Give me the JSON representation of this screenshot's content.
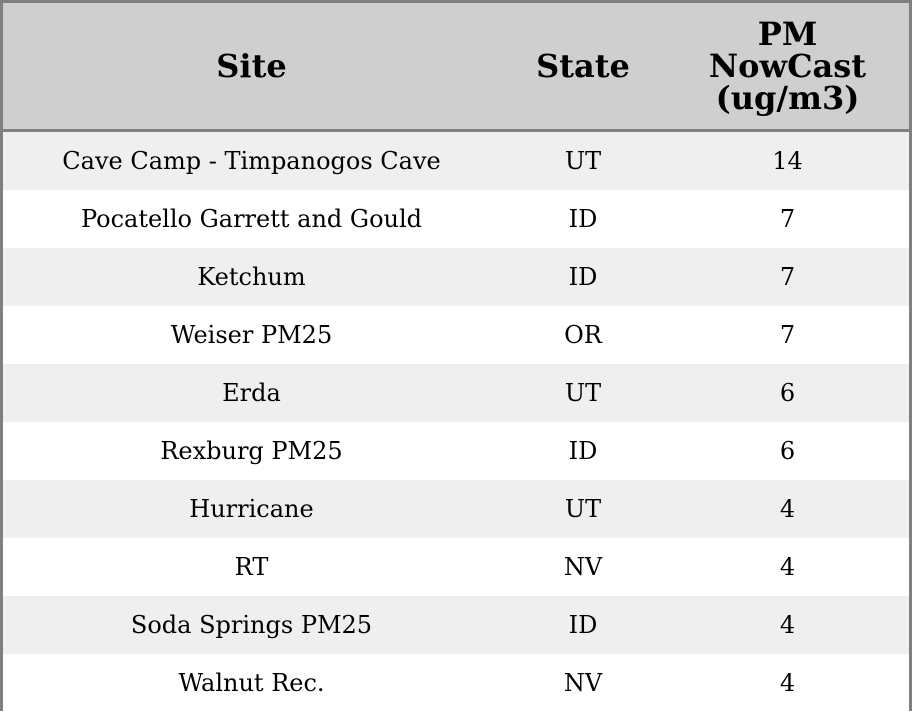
{
  "chart_data": {
    "type": "table",
    "columns": [
      "Site",
      "State",
      "PM NowCast (ug/m3)"
    ],
    "rows": [
      [
        "Cave Camp - Timpanogos Cave",
        "UT",
        "14"
      ],
      [
        "Pocatello Garrett and Gould",
        "ID",
        "7"
      ],
      [
        "Ketchum",
        "ID",
        "7"
      ],
      [
        "Weiser PM25",
        "OR",
        "7"
      ],
      [
        "Erda",
        "UT",
        "6"
      ],
      [
        "Rexburg PM25",
        "ID",
        "6"
      ],
      [
        "Hurricane",
        "UT",
        "4"
      ],
      [
        "RT",
        "NV",
        "4"
      ],
      [
        "Soda Springs PM25",
        "ID",
        "4"
      ],
      [
        "Walnut Rec.",
        "NV",
        "4"
      ]
    ],
    "colors": {
      "header_bg": "#cfcfcf",
      "row_alt_bg": "#efefef",
      "border": "#808080"
    }
  }
}
